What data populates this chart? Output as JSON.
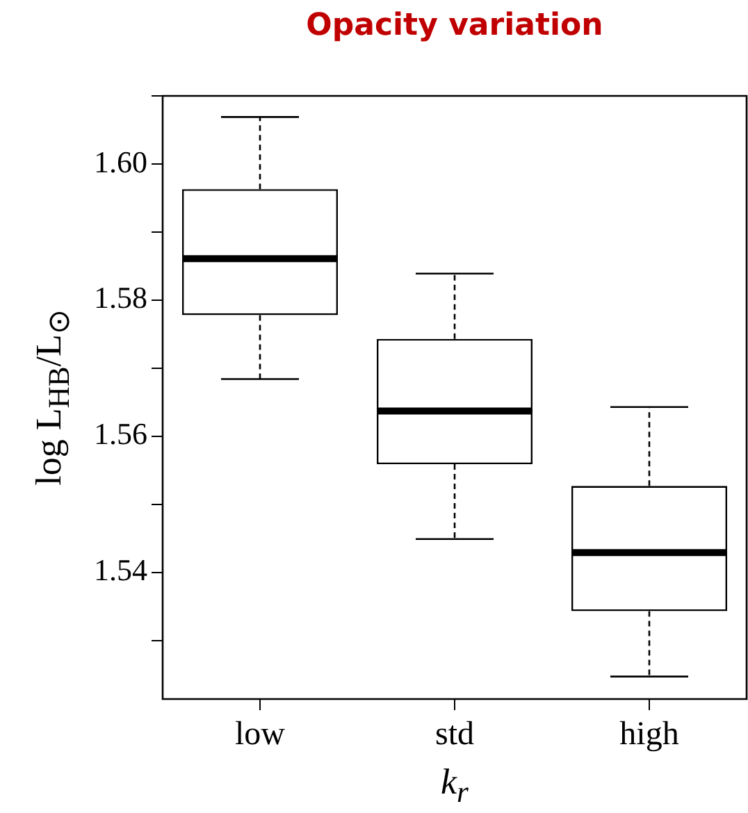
{
  "chart_data": {
    "type": "box",
    "title": "Opacity variation",
    "xlabel": "k$_{r}$",
    "ylabel": "log L$_{HB}$/L$_{⊙}$",
    "categories": [
      "low",
      "std",
      "high"
    ],
    "boxes": [
      {
        "low": 1.5684,
        "q1": 1.5778,
        "median": 1.5861,
        "q3": 1.5963,
        "high": 1.6069
      },
      {
        "low": 1.5449,
        "q1": 1.5559,
        "median": 1.5637,
        "q3": 1.5743,
        "high": 1.5839
      },
      {
        "low": 1.5247,
        "q1": 1.5343,
        "median": 1.5429,
        "q3": 1.5527,
        "high": 1.5643
      }
    ],
    "ylim": [
      1.5214,
      1.61
    ],
    "yticks": [
      {
        "value": 1.53,
        "label": null
      },
      1.54,
      {
        "value": 1.55,
        "label": null
      },
      1.56,
      {
        "value": 1.57,
        "label": null
      },
      1.58,
      {
        "value": 1.59,
        "label": null
      },
      {
        "value": 1.6,
        "label": "1.60"
      },
      {
        "value": 1.61,
        "label": null
      }
    ]
  }
}
